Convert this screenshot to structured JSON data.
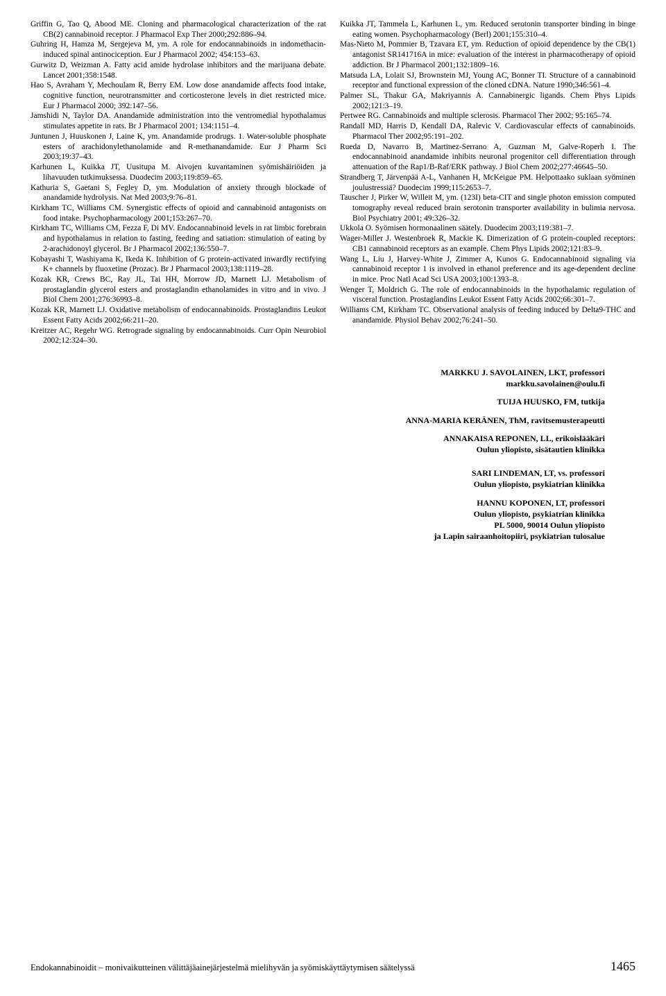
{
  "left_refs": [
    "Griffin G, Tao Q, Abood ME. Cloning and pharmacological characterization of the rat CB(2) cannabinoid receptor. J Pharmacol Exp Ther 2000;292:886–94.",
    "Guhring H, Hamza M, Sergejeva M, ym. A role for endocannabinoids in indomethacin-induced spinal antinociception. Eur J Pharmacol 2002; 454:153–63.",
    "Gurwitz D, Weizman A. Fatty acid amide hydrolase inhibitors and the marijuana debate. Lancet 2001;358:1548.",
    "Hao S, Avraham Y, Mechoulam R, Berry EM. Low dose anandamide affects food intake, cognitive function, neurotransmitter and corticosterone levels in diet restricted mice. Eur J Pharmacol 2000; 392:147–56.",
    "Jamshidi N, Taylor DA. Anandamide administration into the ventromedial hypothalamus stimulates appetite in rats. Br J Pharmacol 2001; 134:1151–4.",
    "Juntunen J, Huuskonen J, Laine K, ym. Anandamide prodrugs. 1. Water-soluble phosphate esters of arachidonylethanolamide and R-methanandamide. Eur J Pharm Sci 2003;19:37–43.",
    "Karhunen L, Kuikka JT, Uusitupa M. Aivojen kuvantaminen syömishäiriöiden ja lihavuuden tutkimuksessa. Duodecim 2003;119:859–65.",
    "Kathuria S, Gaetani S, Fegley D, ym. Modulation of anxiety through blockade of anandamide hydrolysis. Nat Med 2003;9:76–81.",
    "Kirkham TC, Williams CM. Synergistic effects of opioid and cannabinoid antagonists on food intake. Psychopharmacology 2001;153:267–70.",
    "Kirkham TC, Williams CM, Fezza F, Di MV. Endocannabinoid levels in rat limbic forebrain and hypothalamus in relation to fasting, feeding and satiation: stimulation of eating by 2-arachidonoyl glycerol. Br J Pharmacol 2002;136:550–7.",
    "Kobayashi T, Washiyama K, Ikeda K. Inhibition of G protein-activated inwardly rectifying K+ channels by fluoxetine (Prozac). Br J Pharmacol 2003;138:1119–28.",
    "Kozak KR, Crews BC, Ray JL, Tai HH, Morrow JD, Marnett LJ. Metabolism of prostaglandin glycerol esters and prostaglandin ethanolamides in vitro and in vivo. J Biol Chem 2001;276:36993–8.",
    "Kozak KR, Marnett LJ. Oxidative metabolism of endocannabinoids. Prostaglandins Leukot Essent Fatty Acids 2002;66:211–20.",
    "Kreitzer AC, Regehr WG. Retrograde signaling by endocannabinoids. Curr Opin Neurobiol 2002;12:324–30."
  ],
  "right_refs": [
    "Kuikka JT, Tammela L, Karhunen L, ym. Reduced serotonin transporter binding in binge eating women. Psychopharmacology (Berl) 2001;155:310–4.",
    "Mas-Nieto M, Pommier B, Tzavara ET, ym. Reduction of opioid dependence by the CB(1) antagonist SR141716A in mice: evaluation of the interest in pharmacotherapy of opioid addiction. Br J Pharmacol 2001;132:1809–16.",
    "Matsuda LA, Lolait SJ, Brownstein MJ, Young AC, Bonner TI. Structure of a cannabinoid receptor and functional expression of the cloned cDNA. Nature 1990;346:561–4.",
    "Palmer SL, Thakur GA, Makriyannis A. Cannabinergic ligands. Chem Phys Lipids 2002;121:3–19.",
    "Pertwee RG. Cannabinoids and multiple sclerosis. Pharmacol Ther 2002; 95:165–74.",
    "Randall MD, Harris D, Kendall DA, Ralevic V. Cardiovascular effects of cannabinoids. Pharmacol Ther 2002;95:191–202.",
    "Rueda D, Navarro B, Martinez-Serrano A, Guzman M, Galve-Roperh I. The endocannabinoid anandamide inhibits neuronal progenitor cell differentiation through attenuation of the Rap1/B-Raf/ERK pathway. J Biol Chem 2002;277:46645–50.",
    "Strandberg T, Järvenpää A-L, Vanhanen H, McKeigue PM. Helpottaako suklaan syöminen joulustressiä? Duodecim 1999;115:2653–7.",
    "Tauscher J, Pirker W, Willeit M, ym. (123I) beta-CIT and single photon emission computed tomography reveal reduced brain serotonin transporter availability in bulimia nervosa. Biol Psychiatry 2001; 49:326–32.",
    "Ukkola O. Syömisen hormonaalinen säätely. Duodecim 2003;119:381–7.",
    "Wager-Miller J. Westenbroek R, Mackie K. Dimerization of G protein-coupled receptors: CB1 cannabinoid receptors as an example. Chem Phys Lipids 2002;121:83–9.",
    "Wang L, Liu J, Harvey-White J, Zimmer A, Kunos G. Endocannabinoid signaling via cannabinoid receptor 1 is involved in ethanol preference and its age-dependent decline in mice. Proc Natl Acad Sci USA 2003;100:1393–8.",
    "Wenger T, Moldrich G. The role of endocannabinoids in the hypothalamic regulation of visceral function. Prostaglandins Leukot Essent Fatty Acids 2002;66:301–7.",
    "Williams CM, Kirkham TC. Observational analysis of feeding induced by Delta9-THC and anandamide. Physiol Behav 2002;76:241–50."
  ],
  "authors": {
    "g1_l1": "MARKKU J. SAVOLAINEN, LKT, professori",
    "g1_l2": "markku.savolainen@oulu.fi",
    "g2_l1": "TUIJA HUUSKO, FM, tutkija",
    "g3_l1": "ANNA-MARIA KERÄNEN, ThM, ravitsemusterapeutti",
    "g4_l1": "ANNAKAISA REPONEN, LL, erikoislääkäri",
    "g4_l2": "Oulun yliopisto, sisätautien klinikka",
    "g5_l1": "SARI LINDEMAN, LT, vs. professori",
    "g5_l2": "Oulun yliopisto, psykiatrian klinikka",
    "g6_l1": "HANNU KOPONEN, LT, professori",
    "g6_l2": "Oulun yliopisto, psykiatrian klinikka",
    "g6_l3": "PL 5000, 90014 Oulun yliopisto",
    "g6_l4": "ja Lapin sairaanhoitopiiri, psykiatrian tulosalue"
  },
  "footer": {
    "title": "Endokannabinoidit – monivaikutteinen välittäjäainejärjestelmä mielihyvän ja syömiskäyttäytymisen säätelyssä",
    "page": "1465"
  }
}
